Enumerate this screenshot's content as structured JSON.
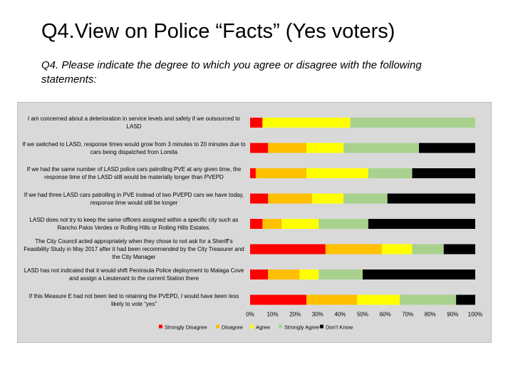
{
  "slide": {
    "title": "Q4.View on Police “Facts” (Yes voters)",
    "subtitle": "Q4. Please indicate the degree to which you agree or disagree with the following statements:"
  },
  "chart_data": {
    "type": "bar",
    "orientation": "horizontal",
    "stacked": "percent",
    "categories": [
      "I am concerned about a deterioration in service levels and safety if we outsourced to LASD",
      "If we switched to LASD, response times would grow from 3 minutes to 20 minutes due to cars being dispatched from Lomita",
      "If we had the same number of LASD police cars patrolling PVE at any given time, the response time of the LASD still would be materially longer than PVEPD",
      "If we had three LASD cars patrolling in PVE instead of two PVEPD cars we have today, response time would still be longer",
      "LASD does not try to keep the same officers assigned within a specific city such as Rancho Palos Verdes or Rolling Hills or Rolling Hills Estates.",
      "The City Council acted appropriately when they chose to not ask for a Sheriff’s Feasibility Study in May 2017 after it had been recommended by the City Treasurer and the City Manager",
      "LASD has not indicated that it would shift Peninsula Police deployment to Malaga Cove and assign a Lieutenant to the current Station there",
      "If this Measure E had not been tied to retaining the PVEPD, I would have been less likely to vote “yes”"
    ],
    "series": [
      {
        "name": "Strongly Disagree",
        "color": "#ff0000",
        "values": [
          5.5,
          8,
          2.5,
          8,
          5.5,
          33.5,
          8,
          25
        ]
      },
      {
        "name": "Disagree",
        "color": "#ffc000",
        "values": [
          0,
          17,
          22.5,
          19.5,
          8.5,
          25,
          14,
          22.5
        ]
      },
      {
        "name": "Agree",
        "color": "#ffff00",
        "values": [
          39,
          16.5,
          27.5,
          14,
          16.5,
          13.5,
          8.5,
          19
        ]
      },
      {
        "name": "Strongly Agree",
        "color": "#a9d18e",
        "values": [
          55.5,
          33.5,
          19.5,
          19.5,
          22,
          14,
          19.5,
          25
        ]
      },
      {
        "name": "Don't Know",
        "color": "#000000",
        "values": [
          0,
          25,
          28,
          39,
          47.5,
          14,
          50,
          8.5
        ]
      }
    ],
    "x_ticks": [
      "0%",
      "10%",
      "20%",
      "30%",
      "40%",
      "50%",
      "60%",
      "70%",
      "80%",
      "90%",
      "100%"
    ],
    "xlim": [
      0,
      100
    ],
    "grid": false,
    "legend_position": "bottom"
  }
}
